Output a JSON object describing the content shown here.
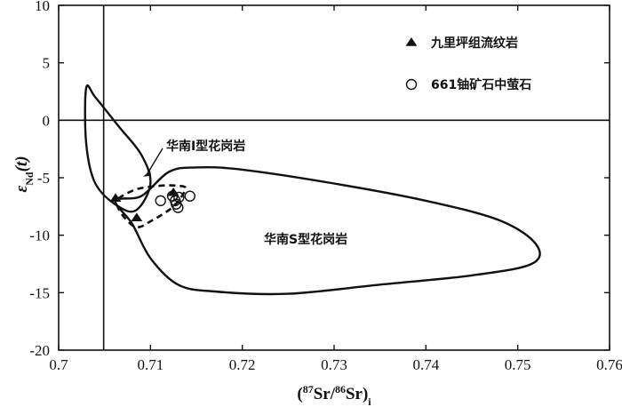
{
  "chart_data": {
    "type": "scatter",
    "xlim": [
      0.7,
      0.76
    ],
    "ylim": [
      -20,
      10
    ],
    "x_ticks": [
      "0.7",
      "0.71",
      "0.72",
      "0.73",
      "0.74",
      "0.75",
      "0.76"
    ],
    "y_ticks": [
      "10",
      "5",
      "0",
      "-5",
      "-10",
      "-15",
      "-20"
    ],
    "xlabel": "(87Sr/86Sr)i",
    "ylabel": "εNd(t)",
    "reference_lines": {
      "vertical_x": 0.7049,
      "horizontal_y": 0
    },
    "legend": {
      "placement": "top-right",
      "items": [
        {
          "marker": "filled-triangle",
          "label": "九里坪组流纹岩"
        },
        {
          "marker": "open-circle",
          "label": "661铀矿石中萤石"
        }
      ]
    },
    "series": [
      {
        "name": "九里坪组流纹岩",
        "marker": "filled-triangle",
        "points": [
          [
            0.7062,
            -6.8
          ],
          [
            0.7085,
            -8.5
          ],
          [
            0.7125,
            -6.3
          ]
        ]
      },
      {
        "name": "661铀矿石中萤石",
        "marker": "open-circle",
        "points": [
          [
            0.7111,
            -7.0
          ],
          [
            0.7127,
            -7.0
          ],
          [
            0.7128,
            -7.3
          ],
          [
            0.713,
            -7.6
          ],
          [
            0.7131,
            -6.7
          ],
          [
            0.7143,
            -6.6
          ],
          [
            0.7124,
            -6.6
          ]
        ]
      }
    ],
    "fields": [
      {
        "label": "华南I型花岗岩",
        "style": "solid",
        "outline": [
          [
            0.703,
            2.8
          ],
          [
            0.704,
            2.0
          ],
          [
            0.7065,
            -0.5
          ],
          [
            0.709,
            -3.0
          ],
          [
            0.71,
            -5.5
          ],
          [
            0.7085,
            -7.8
          ],
          [
            0.7065,
            -7.5
          ],
          [
            0.704,
            -5.5
          ],
          [
            0.703,
            -2.0
          ],
          [
            0.703,
            2.8
          ]
        ]
      },
      {
        "label": "华南S型花岗岩",
        "style": "solid",
        "outline": [
          [
            0.7062,
            -7.0
          ],
          [
            0.709,
            -6.6
          ],
          [
            0.712,
            -4.5
          ],
          [
            0.715,
            -4.1
          ],
          [
            0.72,
            -4.3
          ],
          [
            0.73,
            -5.5
          ],
          [
            0.74,
            -7.0
          ],
          [
            0.748,
            -8.7
          ],
          [
            0.752,
            -10.8
          ],
          [
            0.7515,
            -12.5
          ],
          [
            0.745,
            -13.5
          ],
          [
            0.735,
            -14.3
          ],
          [
            0.725,
            -15.1
          ],
          [
            0.717,
            -14.9
          ],
          [
            0.713,
            -14.3
          ],
          [
            0.71,
            -12.0
          ],
          [
            0.708,
            -9.0
          ],
          [
            0.7062,
            -7.0
          ]
        ]
      },
      {
        "label": "",
        "style": "dashed",
        "outline": [
          [
            0.7065,
            -6.8
          ],
          [
            0.7085,
            -6.0
          ],
          [
            0.711,
            -5.7
          ],
          [
            0.713,
            -5.7
          ],
          [
            0.7138,
            -6.0
          ],
          [
            0.7125,
            -7.5
          ],
          [
            0.71,
            -8.8
          ],
          [
            0.7085,
            -9.3
          ],
          [
            0.7072,
            -8.5
          ],
          [
            0.7063,
            -7.3
          ],
          [
            0.7065,
            -6.8
          ]
        ]
      }
    ],
    "annotations": [
      {
        "text": "华南I型花岗岩",
        "arrow_to": [
          0.7092,
          -4.9
        ]
      },
      {
        "text": "华南S型花岗岩"
      }
    ]
  }
}
